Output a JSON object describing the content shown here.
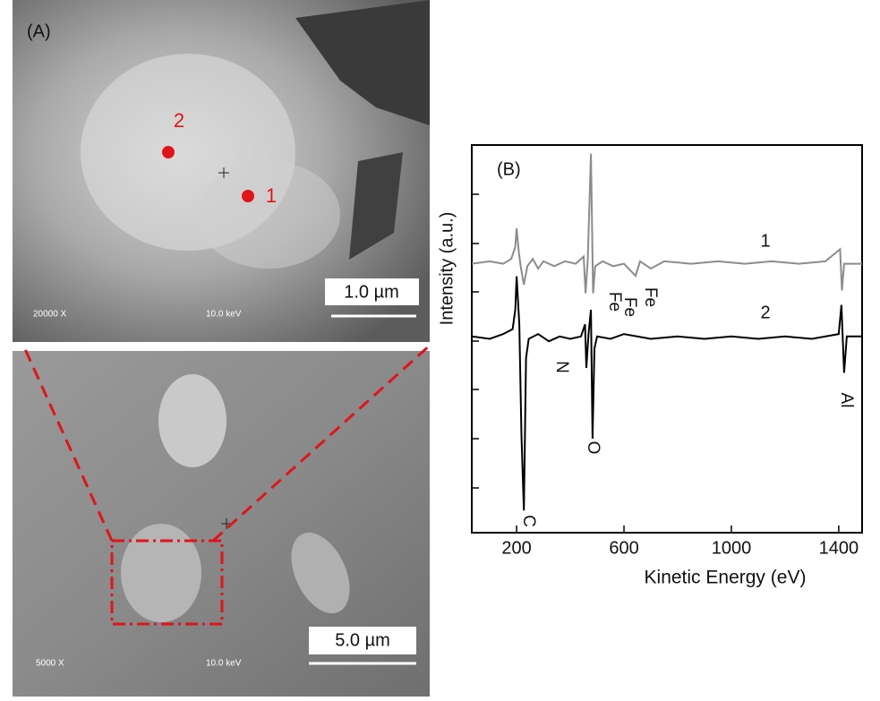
{
  "panel_a": {
    "label": "(A)",
    "top_image": {
      "points": [
        "2",
        "1"
      ],
      "scale_bar": "1.0 µm",
      "magnification": "20000 X",
      "voltage": "10.0 keV"
    },
    "bottom_image": {
      "scale_bar": "5.0 µm",
      "magnification": "5000 X",
      "voltage": "10.0 keV"
    }
  },
  "chart_data": {
    "type": "line",
    "panel_label": "(B)",
    "x_label": "Kinetic Energy (eV)",
    "y_label": "Intensity (a.u.)",
    "xlim": [
      33,
      1487
    ],
    "xticks": [
      200,
      600,
      1000,
      1400
    ],
    "ylim": [
      0,
      8
    ],
    "annotations": [
      "C",
      "N",
      "O",
      "Fe",
      "Fe",
      "Fe",
      "Al"
    ],
    "series": [
      {
        "name": "1",
        "color": "#8c8c8c",
        "x": [
          33,
          100,
          150,
          180,
          195,
          200,
          208,
          215,
          227,
          240,
          260,
          280,
          300,
          340,
          380,
          420,
          450,
          457,
          465,
          477,
          485,
          493,
          520,
          560,
          600,
          643,
          660,
          700,
          750,
          850,
          950,
          1050,
          1150,
          1250,
          1350,
          1405,
          1412,
          1420,
          1487
        ],
        "values": [
          5.55,
          5.6,
          5.55,
          5.65,
          5.9,
          6.28,
          5.8,
          5.5,
          5.12,
          5.5,
          5.65,
          5.45,
          5.6,
          5.5,
          5.6,
          5.55,
          5.7,
          4.94,
          5.6,
          7.82,
          4.94,
          5.5,
          5.6,
          5.5,
          5.55,
          5.3,
          5.6,
          5.45,
          5.6,
          5.55,
          5.6,
          5.55,
          5.6,
          5.55,
          5.6,
          5.85,
          5.0,
          5.55,
          5.55
        ]
      },
      {
        "name": "2",
        "color": "#000000",
        "x": [
          33,
          100,
          150,
          185,
          195,
          200,
          210,
          218,
          227,
          235,
          245,
          280,
          320,
          360,
          400,
          440,
          455,
          460,
          468,
          477,
          483,
          490,
          500,
          550,
          600,
          700,
          800,
          900,
          1000,
          1100,
          1200,
          1300,
          1400,
          1410,
          1420,
          1430,
          1487
        ],
        "values": [
          4.05,
          4.0,
          4.1,
          4.2,
          4.6,
          5.29,
          4.3,
          2.0,
          0.46,
          3.6,
          4.0,
          4.1,
          3.95,
          4.05,
          4.0,
          4.05,
          4.3,
          3.4,
          4.1,
          4.6,
          1.94,
          3.8,
          4.05,
          4.0,
          4.1,
          4.0,
          4.05,
          4.0,
          4.05,
          4.0,
          4.05,
          4.0,
          4.1,
          4.7,
          3.3,
          4.05,
          4.05
        ]
      }
    ]
  }
}
